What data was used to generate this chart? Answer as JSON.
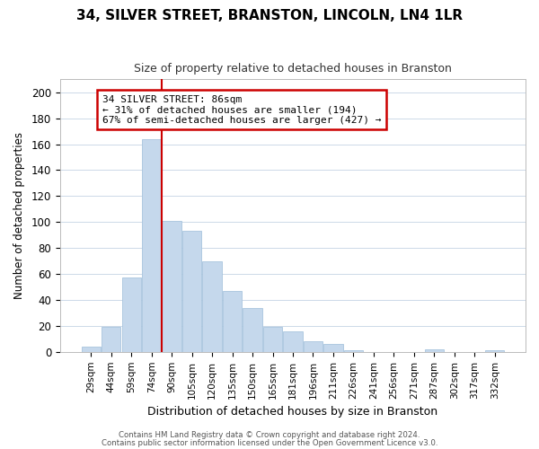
{
  "title": "34, SILVER STREET, BRANSTON, LINCOLN, LN4 1LR",
  "subtitle": "Size of property relative to detached houses in Branston",
  "xlabel": "Distribution of detached houses by size in Branston",
  "ylabel": "Number of detached properties",
  "bar_labels": [
    "29sqm",
    "44sqm",
    "59sqm",
    "74sqm",
    "90sqm",
    "105sqm",
    "120sqm",
    "135sqm",
    "150sqm",
    "165sqm",
    "181sqm",
    "196sqm",
    "211sqm",
    "226sqm",
    "241sqm",
    "256sqm",
    "271sqm",
    "287sqm",
    "302sqm",
    "317sqm",
    "332sqm"
  ],
  "bar_values": [
    4,
    19,
    57,
    164,
    101,
    93,
    70,
    47,
    34,
    19,
    16,
    8,
    6,
    1,
    0,
    0,
    0,
    2,
    0,
    0,
    1
  ],
  "bar_color": "#c5d8ec",
  "bar_edge_color": "#a8c4de",
  "vline_index": 4,
  "vline_color": "#cc0000",
  "ylim": [
    0,
    210
  ],
  "yticks": [
    0,
    20,
    40,
    60,
    80,
    100,
    120,
    140,
    160,
    180,
    200
  ],
  "annotation_title": "34 SILVER STREET: 86sqm",
  "annotation_line1": "← 31% of detached houses are smaller (194)",
  "annotation_line2": "67% of semi-detached houses are larger (427) →",
  "annotation_box_color": "#ffffff",
  "annotation_box_edge": "#cc0000",
  "footer1": "Contains HM Land Registry data © Crown copyright and database right 2024.",
  "footer2": "Contains public sector information licensed under the Open Government Licence v3.0.",
  "background_color": "#ffffff",
  "grid_color": "#ccd9e8"
}
